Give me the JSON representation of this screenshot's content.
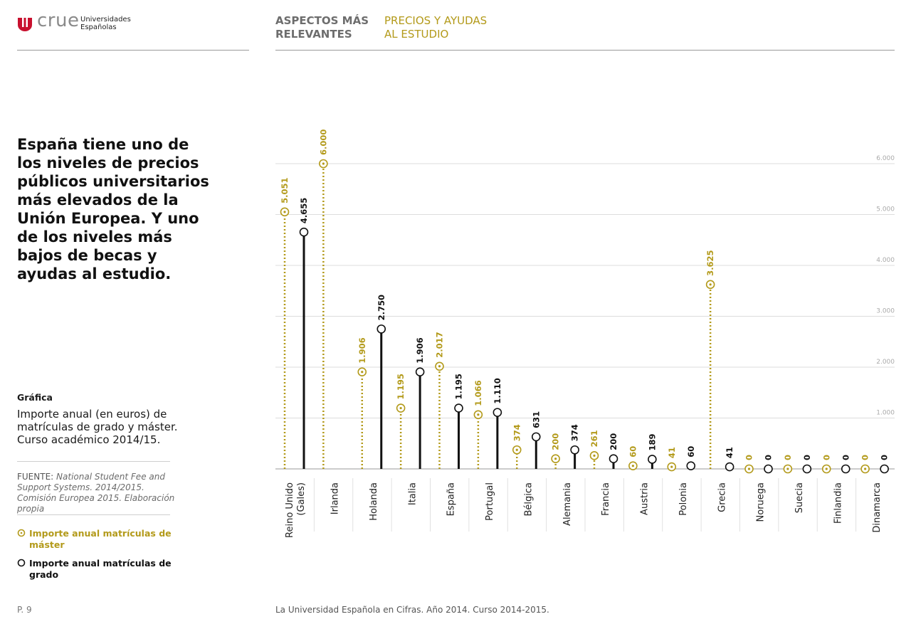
{
  "header": {
    "logo_word": "crue",
    "logo_sub_line1": "Universidades",
    "logo_sub_line2": "Españolas",
    "nav_section": "ASPECTOS MÁS RELEVANTES",
    "nav_subsection": "PRECIOS Y AYUDAS AL ESTUDIO"
  },
  "headline": "España tiene uno de los niveles de precios públicos universitarios más elevados de la Unión Europea. Y uno de los niveles más bajos de becas y ayudas al estudio.",
  "caption": {
    "title": "Gráfica",
    "text": "Importe anual (en euros) de matrículas de grado y máster. Curso académico 2014/15.",
    "source_label": "FUENTE:",
    "source_text": "National Student Fee and Support Systems. 2014/2015. Comisión Europea 2015. Elaboración propia"
  },
  "legend": {
    "master": "Importe anual matrículas de máster",
    "grado": "Importe anual matrículas de grado"
  },
  "footer": {
    "page": "P. 9",
    "text": "La Universidad Española en Cifras. Año 2014. Curso 2014-2015."
  },
  "colors": {
    "master": "#b39a1a",
    "grado": "#111111",
    "grid": "#dddddd",
    "axis": "#999999",
    "tick_label": "#aaaaaa"
  },
  "chart_data": {
    "type": "lollipop",
    "categories": [
      "Reino Unido (Gales)",
      "Irlanda",
      "Holanda",
      "Italia",
      "España",
      "Portugal",
      "Bélgica",
      "Alemania",
      "Francia",
      "Austria",
      "Polonia",
      "Grecia",
      "Noruega",
      "Suecia",
      "Finlandia",
      "Dinamarca"
    ],
    "series": [
      {
        "name": "Importe anual matrículas de máster",
        "values": [
          5051,
          6000,
          1906,
          1195,
          2017,
          1066,
          374,
          200,
          261,
          60,
          41,
          3625,
          0,
          0,
          0,
          0
        ],
        "labels": [
          "5.051",
          "6.000",
          "1.906",
          "1.195",
          "2.017",
          "1.066",
          "374",
          "200",
          "261",
          "60",
          "41",
          "3.625",
          "0",
          "0",
          "0",
          "0"
        ]
      },
      {
        "name": "Importe anual matrículas de grado",
        "values": [
          4655,
          null,
          2750,
          1906,
          1195,
          1110,
          631,
          374,
          200,
          189,
          60,
          41,
          0,
          0,
          0,
          0
        ],
        "labels": [
          "4.655",
          "",
          "2.750",
          "1.906",
          "1.195",
          "1.110",
          "631",
          "374",
          "200",
          "189",
          "60",
          "41",
          "0",
          "0",
          "0",
          "0"
        ]
      }
    ],
    "ylim": [
      0,
      6000
    ],
    "yticks": [
      1000,
      2000,
      3000,
      4000,
      5000,
      6000
    ],
    "ytick_labels": [
      "1.000",
      "2.000",
      "3.000",
      "4.000",
      "5.000",
      "6.000"
    ],
    "grid": true,
    "legend_position": "bottom-left"
  }
}
